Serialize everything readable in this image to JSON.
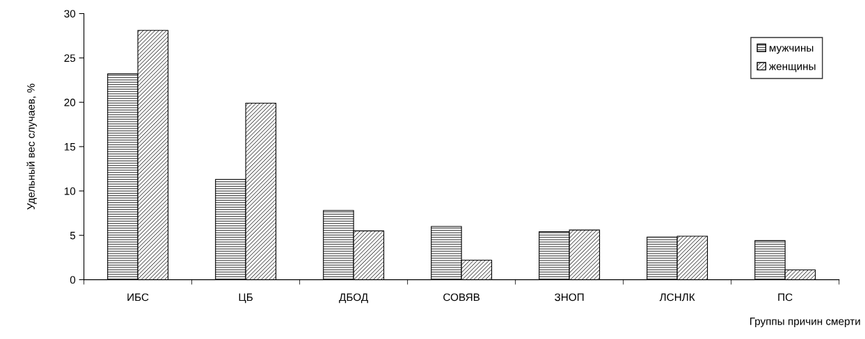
{
  "chart_data": {
    "type": "bar",
    "xlabel": "Группы причин смерти",
    "ylabel": "Удельный вес случаев, %",
    "categories": [
      "ИБС",
      "ЦБ",
      "ДБОД",
      "СОВЯВ",
      "ЗНОП",
      "ЛСНЛК",
      "ПС"
    ],
    "series": [
      {
        "name": "мужчины",
        "color": "#000000",
        "values": [
          23.2,
          11.3,
          7.8,
          6.0,
          5.4,
          4.8,
          4.4
        ]
      },
      {
        "name": "женщины",
        "color": "#000000",
        "values": [
          28.1,
          19.9,
          5.5,
          2.2,
          5.6,
          4.9,
          1.1
        ]
      }
    ],
    "ylim": [
      0,
      30
    ],
    "yticks": [
      0,
      5,
      10,
      15,
      20,
      25,
      30
    ],
    "grid": false,
    "legend": "top right"
  }
}
